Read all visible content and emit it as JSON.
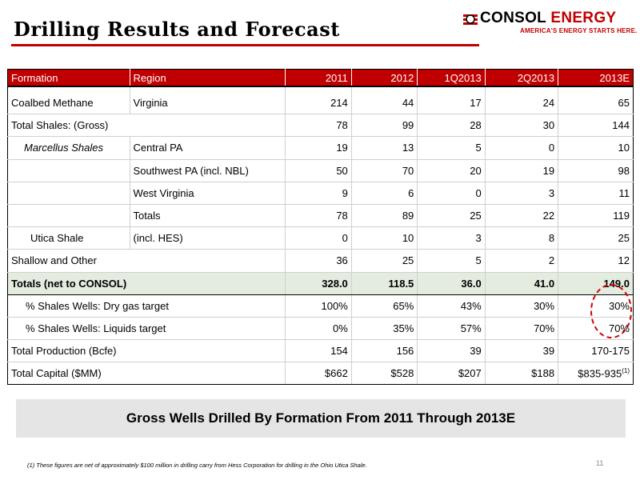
{
  "title": "Drilling Results and Forecast",
  "logo": {
    "name_part1": "CONSOL",
    "name_part2": "ENERGY",
    "tagline": "AMERICA'S ENERGY STARTS HERE."
  },
  "table": {
    "headers": [
      "Formation",
      "Region",
      "2011",
      "2012",
      "1Q2013",
      "2Q2013",
      "2013E"
    ],
    "rows": [
      [
        "Coalbed Methane",
        "Virginia",
        "214",
        "44",
        "17",
        "24",
        "65"
      ],
      [
        "Total Shales: (Gross)",
        "",
        "78",
        "99",
        "28",
        "30",
        "144"
      ],
      [
        "Marcellus Shales",
        "Central PA",
        "19",
        "13",
        "5",
        "0",
        "10"
      ],
      [
        "",
        "Southwest PA (incl. NBL)",
        "50",
        "70",
        "20",
        "19",
        "98"
      ],
      [
        "",
        "West Virginia",
        "9",
        "6",
        "0",
        "3",
        "11"
      ],
      [
        "",
        "Totals",
        "78",
        "89",
        "25",
        "22",
        "119"
      ],
      [
        "Utica Shale",
        "(incl. HES)",
        "0",
        "10",
        "3",
        "8",
        "25"
      ],
      [
        "Shallow and Other",
        "",
        "36",
        "25",
        "5",
        "2",
        "12"
      ],
      [
        "Totals (net to CONSOL)",
        "",
        "328.0",
        "118.5",
        "36.0",
        "41.0",
        "149.0"
      ],
      [
        "% Shales Wells: Dry gas target",
        "",
        "100%",
        "65%",
        "43%",
        "30%",
        "30%"
      ],
      [
        "% Shales Wells: Liquids target",
        "",
        "0%",
        "35%",
        "57%",
        "70%",
        "70%"
      ],
      [
        "Total Production (Bcfe)",
        "",
        "154",
        "156",
        "39",
        "39",
        "170-175"
      ],
      [
        "Total Capital ($MM)",
        "",
        "$662",
        "$528",
        "$207",
        "$188",
        "$835-935"
      ]
    ],
    "capital_footnote_marker": "(1)"
  },
  "banner": "Gross Wells Drilled By Formation From 2011 Through 2013E",
  "footnote": "(1)  These figures are net of approximately $100 million in drilling carry from Hess Corporation for drilling in the Ohio Utica Shale.",
  "page_number": "11",
  "colors": {
    "accent": "#c00000",
    "total_row_bg": "#e4ece0",
    "banner_bg": "#e5e5e5"
  }
}
